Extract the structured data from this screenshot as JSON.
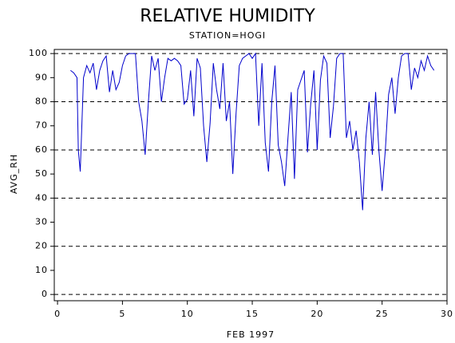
{
  "chart_data": {
    "type": "line",
    "title": "RELATIVE HUMIDITY",
    "subtitle": "STATION=HOGI",
    "x_label": "FEB 1997",
    "y_label": "AVG_RH",
    "xlim": [
      -0.25,
      30
    ],
    "xticks": [
      0,
      5,
      10,
      15,
      20,
      25,
      30
    ],
    "ylim": [
      -2.6,
      101.7
    ],
    "yticks": [
      0,
      10,
      20,
      30,
      40,
      50,
      60,
      70,
      80,
      90,
      100
    ],
    "ygrid": [
      0,
      20,
      40,
      60,
      80,
      100
    ],
    "x": [
      1.0,
      1.25,
      1.5,
      1.6,
      1.75,
      2.0,
      2.25,
      2.5,
      2.75,
      3.0,
      3.25,
      3.5,
      3.75,
      4.0,
      4.25,
      4.5,
      4.75,
      5.0,
      5.25,
      5.5,
      6.0,
      6.25,
      6.5,
      6.75,
      7.0,
      7.25,
      7.5,
      7.75,
      8.0,
      8.25,
      8.5,
      8.75,
      9.0,
      9.25,
      9.5,
      9.75,
      10.0,
      10.25,
      10.5,
      10.75,
      11.0,
      11.25,
      11.5,
      11.75,
      12.0,
      12.25,
      12.5,
      12.75,
      13.0,
      13.25,
      13.5,
      13.75,
      14.0,
      14.25,
      14.5,
      14.75,
      15.0,
      15.25,
      15.5,
      15.75,
      16.0,
      16.25,
      16.5,
      16.75,
      17.0,
      17.25,
      17.5,
      17.75,
      18.0,
      18.25,
      18.5,
      18.75,
      19.0,
      19.25,
      19.5,
      19.75,
      20.0,
      20.25,
      20.5,
      20.75,
      21.0,
      21.25,
      21.5,
      21.75,
      22.0,
      22.25,
      22.5,
      22.75,
      23.0,
      23.25,
      23.5,
      23.75,
      24.0,
      24.25,
      24.5,
      24.75,
      25.0,
      25.25,
      25.5,
      25.75,
      26.0,
      26.25,
      26.5,
      26.75,
      27.0,
      27.25,
      27.5,
      27.75,
      28.0,
      28.25,
      28.5,
      28.75,
      29.0
    ],
    "series": [
      {
        "name": "AVG_RH",
        "color": "#0000cc",
        "values": [
          93,
          92,
          90,
          60,
          51,
          90,
          95,
          92,
          96,
          85,
          93,
          97,
          99,
          84,
          93,
          85,
          88,
          95,
          99,
          100,
          100,
          80,
          72,
          58,
          80,
          99,
          93,
          98,
          80,
          90,
          98,
          97,
          98,
          97,
          95,
          79,
          81,
          93,
          74,
          98,
          94,
          70,
          55,
          71,
          96,
          85,
          77,
          96,
          72,
          80,
          50,
          75,
          95,
          98,
          99,
          100,
          98,
          100,
          70,
          96,
          63,
          51,
          80,
          95,
          62,
          55,
          45,
          65,
          84,
          48,
          85,
          89,
          93,
          59,
          79,
          93,
          60,
          89,
          99,
          96,
          65,
          78,
          98,
          100,
          100,
          65,
          72,
          60,
          68,
          55,
          35,
          65,
          80,
          58,
          84,
          60,
          43,
          60,
          83,
          90,
          75,
          90,
          99,
          100,
          100,
          85,
          94,
          90,
          97,
          93,
          99,
          95,
          93
        ]
      }
    ]
  }
}
